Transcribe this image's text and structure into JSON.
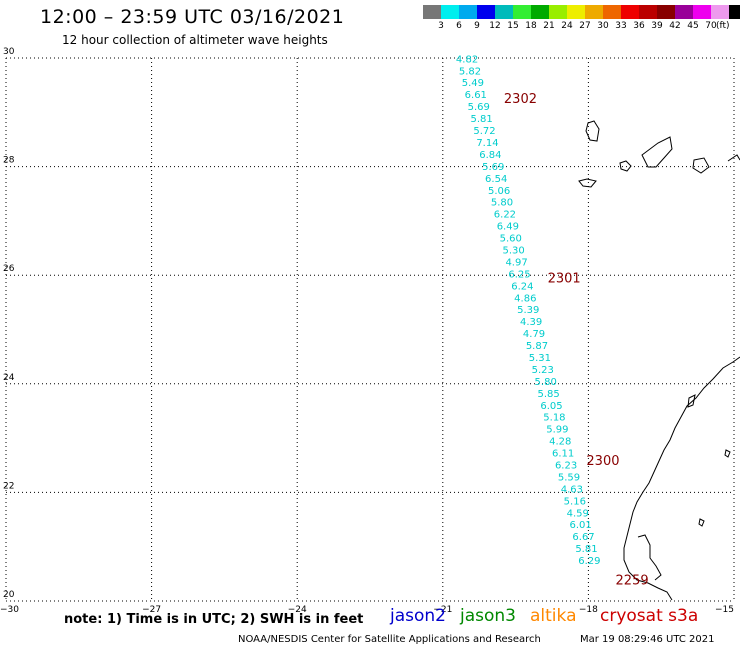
{
  "header": {
    "title": "12:00 – 23:59 UTC 03/16/2021",
    "subtitle": "12 hour collection of altimeter wave heights"
  },
  "colorbar": {
    "colors": [
      "#777777",
      "#00eeee",
      "#00aaee",
      "#0000ee",
      "#00bbbb",
      "#33ee33",
      "#00aa00",
      "#99ee00",
      "#eeee00",
      "#eeaa00",
      "#ee6600",
      "#ee0000",
      "#bb0000",
      "#880000",
      "#990099",
      "#ee00ee",
      "#ee99ee",
      "#000000"
    ],
    "labels": [
      "3",
      "6",
      "9",
      "12",
      "15",
      "18",
      "21",
      "24",
      "27",
      "30",
      "33",
      "36",
      "39",
      "42",
      "45",
      "70"
    ],
    "unit": "(ft)"
  },
  "map": {
    "lon_range": [
      -30,
      -15
    ],
    "lat_range": [
      20,
      30
    ],
    "x_ticks": [
      {
        "value": -30,
        "label": "−30"
      },
      {
        "value": -27,
        "label": "−27"
      },
      {
        "value": -24,
        "label": "−24"
      },
      {
        "value": -21,
        "label": "−21"
      },
      {
        "value": -18,
        "label": "−18"
      },
      {
        "value": -15,
        "label": "−15"
      }
    ],
    "y_ticks": [
      {
        "value": 30,
        "label": "30"
      },
      {
        "value": 28,
        "label": "28"
      },
      {
        "value": 26,
        "label": "26"
      },
      {
        "value": 24,
        "label": "24"
      },
      {
        "value": 22,
        "label": "22"
      },
      {
        "value": 20,
        "label": "20"
      }
    ],
    "grid": "dotted",
    "track_color": "#00cccc",
    "time_label_color": "#880000",
    "coast_color": "#000000"
  },
  "chart_data": {
    "type": "scatter",
    "title": "12:00 – 23:59 UTC 03/16/2021",
    "subtitle": "12 hour collection of altimeter wave heights",
    "xlim": [
      -30,
      -15
    ],
    "ylim": [
      20,
      30
    ],
    "series": [
      {
        "name": "cryosat s3a",
        "unit": "ft",
        "points": [
          {
            "lon": -20.5,
            "lat": 29.92,
            "swh": "4.82"
          },
          {
            "lon": -20.44,
            "lat": 29.7,
            "swh": "5.82"
          },
          {
            "lon": -20.38,
            "lat": 29.48,
            "swh": "5.49"
          },
          {
            "lon": -20.32,
            "lat": 29.26,
            "swh": "6.61"
          },
          {
            "lon": -20.26,
            "lat": 29.04,
            "swh": "5.69"
          },
          {
            "lon": -20.2,
            "lat": 28.82,
            "swh": "5.81"
          },
          {
            "lon": -20.14,
            "lat": 28.6,
            "swh": "5.72"
          },
          {
            "lon": -20.08,
            "lat": 28.38,
            "swh": "7.14"
          },
          {
            "lon": -20.02,
            "lat": 28.16,
            "swh": "6.84"
          },
          {
            "lon": -19.96,
            "lat": 27.94,
            "swh": "5.69"
          },
          {
            "lon": -19.9,
            "lat": 27.72,
            "swh": "6.54"
          },
          {
            "lon": -19.84,
            "lat": 27.5,
            "swh": "5.06"
          },
          {
            "lon": -19.78,
            "lat": 27.28,
            "swh": "5.80"
          },
          {
            "lon": -19.72,
            "lat": 27.06,
            "swh": "6.22"
          },
          {
            "lon": -19.66,
            "lat": 26.84,
            "swh": "6.49"
          },
          {
            "lon": -19.6,
            "lat": 26.62,
            "swh": "5.60"
          },
          {
            "lon": -19.54,
            "lat": 26.4,
            "swh": "5.30"
          },
          {
            "lon": -19.48,
            "lat": 26.18,
            "swh": "4.97"
          },
          {
            "lon": -19.42,
            "lat": 25.96,
            "swh": "6.25"
          },
          {
            "lon": -19.36,
            "lat": 25.74,
            "swh": "6.24"
          },
          {
            "lon": -19.3,
            "lat": 25.52,
            "swh": "4.86"
          },
          {
            "lon": -19.24,
            "lat": 25.3,
            "swh": "5.39"
          },
          {
            "lon": -19.18,
            "lat": 25.08,
            "swh": "4.39"
          },
          {
            "lon": -19.12,
            "lat": 24.86,
            "swh": "4.79"
          },
          {
            "lon": -19.06,
            "lat": 24.64,
            "swh": "5.87"
          },
          {
            "lon": -19.0,
            "lat": 24.42,
            "swh": "5.31"
          },
          {
            "lon": -18.94,
            "lat": 24.2,
            "swh": "5.23"
          },
          {
            "lon": -18.88,
            "lat": 23.98,
            "swh": "5.80"
          },
          {
            "lon": -18.82,
            "lat": 23.76,
            "swh": "5.85"
          },
          {
            "lon": -18.76,
            "lat": 23.54,
            "swh": "6.05"
          },
          {
            "lon": -18.7,
            "lat": 23.32,
            "swh": "5.18"
          },
          {
            "lon": -18.64,
            "lat": 23.1,
            "swh": "5.99"
          },
          {
            "lon": -18.58,
            "lat": 22.88,
            "swh": "4.28"
          },
          {
            "lon": -18.52,
            "lat": 22.66,
            "swh": "6.11"
          },
          {
            "lon": -18.46,
            "lat": 22.44,
            "swh": "6.23"
          },
          {
            "lon": -18.4,
            "lat": 22.22,
            "swh": "5.59"
          },
          {
            "lon": -18.34,
            "lat": 22.0,
            "swh": "4.63"
          },
          {
            "lon": -18.28,
            "lat": 21.78,
            "swh": "5.16"
          },
          {
            "lon": -18.22,
            "lat": 21.56,
            "swh": "4.59"
          },
          {
            "lon": -18.16,
            "lat": 21.34,
            "swh": "6.01"
          },
          {
            "lon": -18.1,
            "lat": 21.12,
            "swh": "6.67"
          },
          {
            "lon": -18.04,
            "lat": 20.9,
            "swh": "5.81"
          },
          {
            "lon": -17.98,
            "lat": 20.68,
            "swh": "6.29"
          }
        ]
      }
    ],
    "annotations": [
      {
        "text": "2302",
        "lon": -19.4,
        "lat": 29.26
      },
      {
        "text": "2301",
        "lon": -18.5,
        "lat": 25.96
      },
      {
        "text": "2300",
        "lon": -17.7,
        "lat": 22.6
      },
      {
        "text": "2259",
        "lon": -17.1,
        "lat": 20.4
      }
    ]
  },
  "legend": {
    "note": "note:  1) Time is in UTC;  2) SWH is in feet",
    "satellites": [
      {
        "name": "jason2",
        "color": "#0000cc"
      },
      {
        "name": "jason3",
        "color": "#008800"
      },
      {
        "name": "altika",
        "color": "#ff8800"
      },
      {
        "name": "cryosat s3a",
        "color": "#cc0000"
      }
    ]
  },
  "footer": {
    "credit": "NOAA/NESDIS Center for Satellite Applications and Research",
    "timestamp": "Mar 19 08:29:46 UTC 2021"
  }
}
